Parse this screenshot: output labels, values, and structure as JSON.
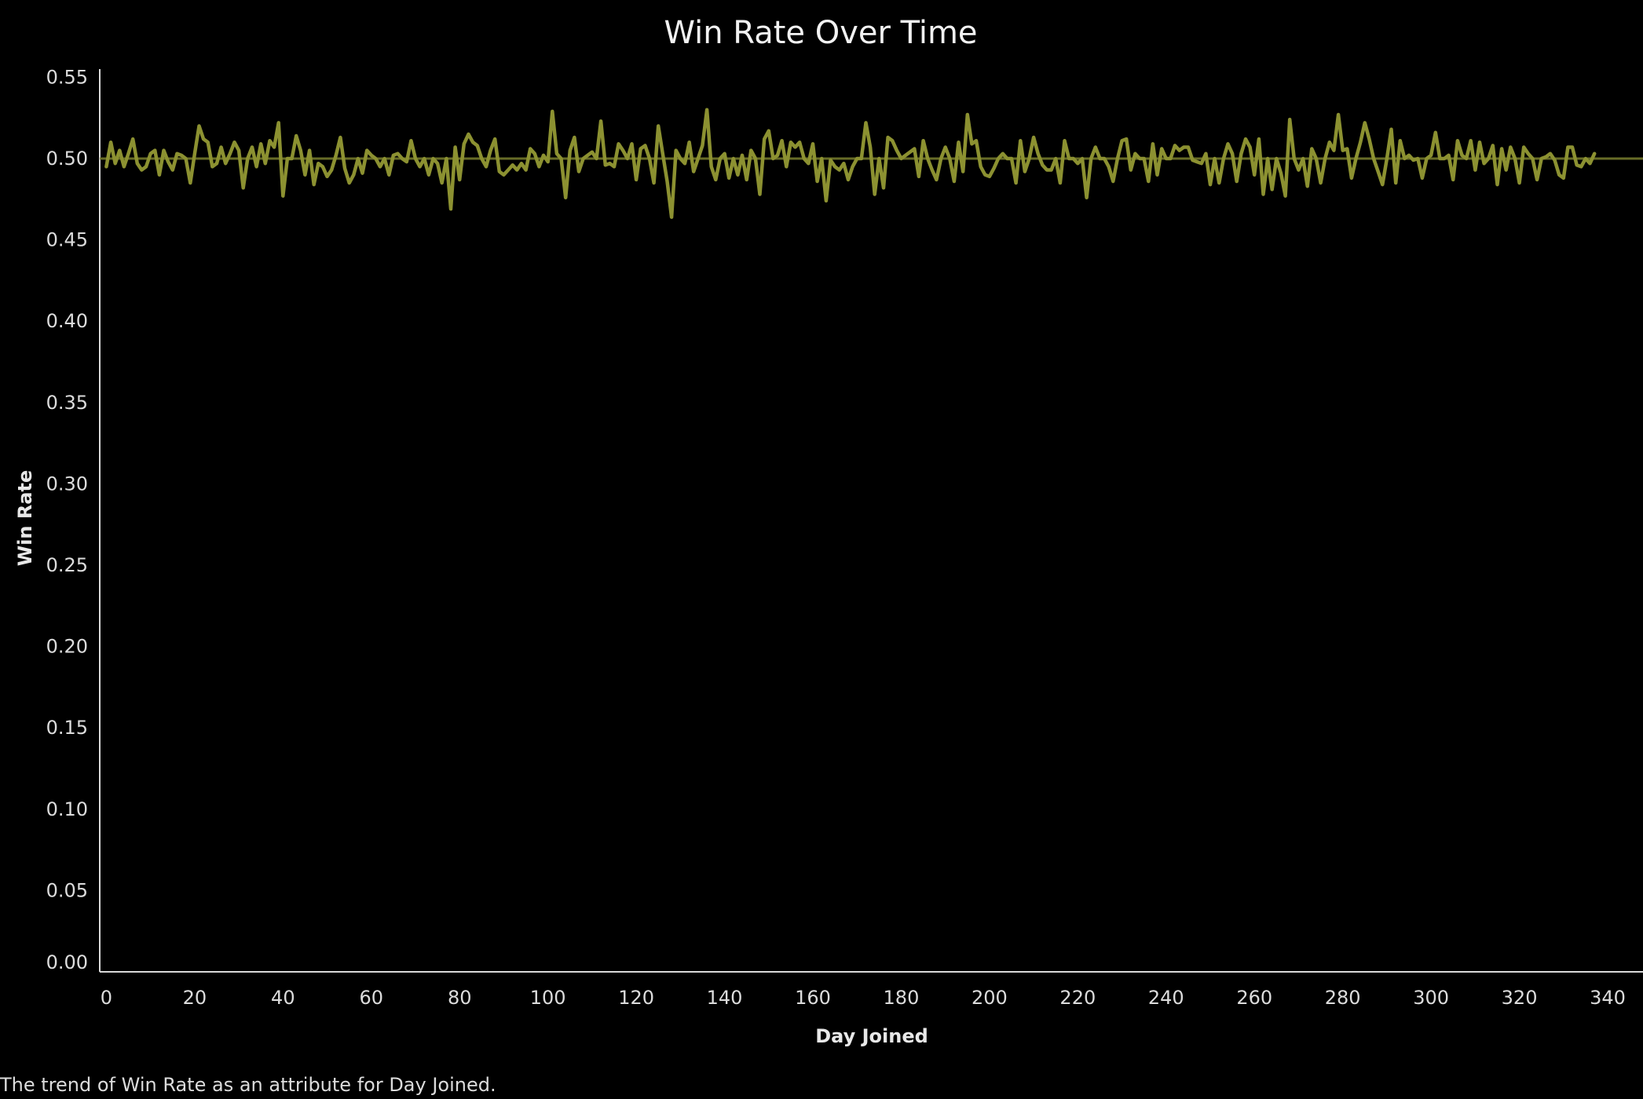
{
  "colors": {
    "background": "#000000",
    "series": "#8c9131",
    "axis": "#d9d9d9",
    "text": "#dcdcdc"
  },
  "caption": "The trend of Win Rate as an attribute for Day Joined.",
  "chart_data": {
    "type": "line",
    "title": "Win Rate Over Time",
    "xlabel": "Day Joined",
    "ylabel": "Win Rate",
    "xlim": [
      -1.5,
      348
    ],
    "ylim": [
      0,
      0.555
    ],
    "xticks": [
      0,
      20,
      40,
      60,
      80,
      100,
      120,
      140,
      160,
      180,
      200,
      220,
      240,
      260,
      280,
      300,
      320,
      340
    ],
    "xtick_labels": [
      "0",
      "20",
      "40",
      "60",
      "80",
      "100",
      "120",
      "140",
      "160",
      "180",
      "200",
      "220",
      "240",
      "260",
      "280",
      "300",
      "320",
      "340"
    ],
    "yticks": [
      0,
      0.05,
      0.1,
      0.15,
      0.2,
      0.25,
      0.3,
      0.35,
      0.4,
      0.45,
      0.5,
      0.55
    ],
    "ytick_labels": [
      "0.00",
      "0.05",
      "0.10",
      "0.15",
      "0.20",
      "0.25",
      "0.30",
      "0.35",
      "0.40",
      "0.45",
      "0.50",
      "0.55"
    ],
    "grid": false,
    "reference_line": 0.5,
    "x_start": 0,
    "x_step": 1,
    "values": [
      0.495,
      0.51,
      0.497,
      0.505,
      0.495,
      0.503,
      0.512,
      0.497,
      0.493,
      0.495,
      0.503,
      0.505,
      0.49,
      0.505,
      0.498,
      0.493,
      0.503,
      0.502,
      0.5,
      0.485,
      0.503,
      0.52,
      0.512,
      0.51,
      0.495,
      0.497,
      0.507,
      0.497,
      0.503,
      0.51,
      0.505,
      0.482,
      0.5,
      0.507,
      0.495,
      0.509,
      0.497,
      0.511,
      0.507,
      0.522,
      0.477,
      0.5,
      0.5,
      0.514,
      0.505,
      0.49,
      0.505,
      0.484,
      0.497,
      0.495,
      0.489,
      0.493,
      0.502,
      0.513,
      0.494,
      0.485,
      0.49,
      0.5,
      0.491,
      0.505,
      0.502,
      0.5,
      0.495,
      0.5,
      0.49,
      0.502,
      0.503,
      0.5,
      0.498,
      0.511,
      0.5,
      0.495,
      0.5,
      0.49,
      0.5,
      0.497,
      0.485,
      0.5,
      0.469,
      0.507,
      0.487,
      0.509,
      0.515,
      0.51,
      0.508,
      0.5,
      0.495,
      0.505,
      0.512,
      0.492,
      0.49,
      0.493,
      0.496,
      0.493,
      0.497,
      0.493,
      0.506,
      0.503,
      0.495,
      0.502,
      0.498,
      0.529,
      0.503,
      0.5,
      0.476,
      0.505,
      0.513,
      0.492,
      0.5,
      0.502,
      0.504,
      0.5,
      0.523,
      0.496,
      0.497,
      0.495,
      0.509,
      0.505,
      0.5,
      0.509,
      0.487,
      0.506,
      0.508,
      0.5,
      0.485,
      0.52,
      0.503,
      0.486,
      0.464,
      0.505,
      0.5,
      0.497,
      0.51,
      0.492,
      0.5,
      0.508,
      0.53,
      0.495,
      0.487,
      0.5,
      0.503,
      0.488,
      0.5,
      0.49,
      0.502,
      0.487,
      0.505,
      0.5,
      0.478,
      0.512,
      0.517,
      0.5,
      0.502,
      0.511,
      0.495,
      0.51,
      0.507,
      0.51,
      0.5,
      0.497,
      0.509,
      0.486,
      0.5,
      0.474,
      0.499,
      0.495,
      0.493,
      0.497,
      0.487,
      0.495,
      0.5,
      0.5,
      0.522,
      0.507,
      0.478,
      0.5,
      0.482,
      0.513,
      0.511,
      0.505,
      0.5,
      0.502,
      0.504,
      0.506,
      0.489,
      0.511,
      0.5,
      0.493,
      0.487,
      0.5,
      0.507,
      0.5,
      0.486,
      0.51,
      0.492,
      0.527,
      0.509,
      0.511,
      0.495,
      0.49,
      0.489,
      0.494,
      0.5,
      0.503,
      0.5,
      0.5,
      0.485,
      0.511,
      0.492,
      0.5,
      0.513,
      0.503,
      0.496,
      0.493,
      0.493,
      0.5,
      0.485,
      0.511,
      0.5,
      0.5,
      0.497,
      0.5,
      0.476,
      0.5,
      0.507,
      0.5,
      0.5,
      0.495,
      0.486,
      0.5,
      0.511,
      0.512,
      0.493,
      0.503,
      0.5,
      0.5,
      0.486,
      0.509,
      0.49,
      0.506,
      0.5,
      0.5,
      0.508,
      0.505,
      0.507,
      0.507,
      0.499,
      0.498,
      0.497,
      0.503,
      0.484,
      0.5,
      0.485,
      0.5,
      0.509,
      0.503,
      0.486,
      0.503,
      0.512,
      0.507,
      0.49,
      0.512,
      0.478,
      0.5,
      0.481,
      0.5,
      0.491,
      0.477,
      0.524,
      0.5,
      0.493,
      0.5,
      0.483,
      0.506,
      0.5,
      0.485,
      0.5,
      0.51,
      0.505,
      0.527,
      0.505,
      0.506,
      0.488,
      0.5,
      0.51,
      0.522,
      0.512,
      0.5,
      0.492,
      0.484,
      0.5,
      0.518,
      0.485,
      0.511,
      0.5,
      0.502,
      0.499,
      0.5,
      0.488,
      0.5,
      0.502,
      0.516,
      0.5,
      0.5,
      0.502,
      0.487,
      0.511,
      0.502,
      0.5,
      0.511,
      0.493,
      0.51,
      0.497,
      0.5,
      0.508,
      0.484,
      0.506,
      0.493,
      0.507,
      0.5,
      0.485,
      0.507,
      0.503,
      0.5,
      0.487,
      0.5,
      0.501,
      0.503,
      0.499,
      0.49,
      0.488,
      0.507,
      0.507,
      0.496,
      0.495,
      0.5,
      0.497,
      0.503
    ]
  }
}
